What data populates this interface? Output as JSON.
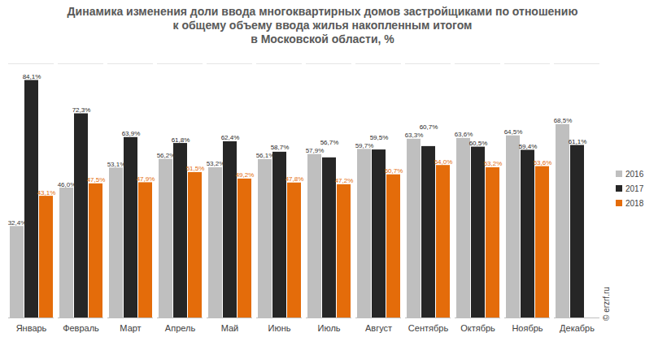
{
  "chart_data": {
    "type": "bar",
    "title": "Динамика изменения доли ввода многоквартирных домов застройщиками по отношению\nк общему объему ввода жилья накопленным итогом\nв Московской области, %",
    "categories": [
      "Январь",
      "Февраль",
      "Март",
      "Апрель",
      "Май",
      "Июнь",
      "Июль",
      "Август",
      "Сентябрь",
      "Октябрь",
      "Ноябрь",
      "Декабрь"
    ],
    "series": [
      {
        "name": "2016",
        "color": "#bfbfbf",
        "values": [
          32.4,
          46.0,
          53.1,
          56.2,
          53.2,
          56.1,
          57.9,
          59.7,
          63.3,
          63.6,
          64.5,
          68.5
        ],
        "value_labels": [
          "32,4%",
          "46,0%",
          "53,1%",
          "56,2%",
          "53,2%",
          "56,1%",
          "57,9%",
          "59,7%",
          "63,3%",
          "63,6%",
          "64,5%",
          "68,5%"
        ]
      },
      {
        "name": "2017",
        "color": "#262626",
        "values": [
          84.1,
          72.3,
          63.9,
          61.8,
          62.4,
          58.7,
          56.7,
          59.5,
          60.7,
          60.5,
          59.4,
          61.1
        ],
        "value_labels": [
          "84,1%",
          "72,3%",
          "63,9%",
          "61,8%",
          "62,4%",
          "58,7%",
          "56,7%",
          "59,5%",
          "60,7%",
          "60,5%",
          "59,4%",
          "61,1%"
        ]
      },
      {
        "name": "2018",
        "color": "#e46c0a",
        "values": [
          43.1,
          47.5,
          47.9,
          51.5,
          49.2,
          47.8,
          47.2,
          50.7,
          54.0,
          53.2,
          53.6,
          null
        ],
        "value_labels": [
          "43,1%",
          "47,5%",
          "47,9%",
          "51,5%",
          "49,2%",
          "47,8%",
          "47,2%",
          "50,7%",
          "54,0%",
          "53,2%",
          "53,6%",
          null
        ]
      }
    ],
    "ylim": [
      0,
      90
    ],
    "data_labels": true,
    "tick_labels": "x",
    "legend": "right",
    "annotations": [
      "© erzrf.ru"
    ]
  }
}
